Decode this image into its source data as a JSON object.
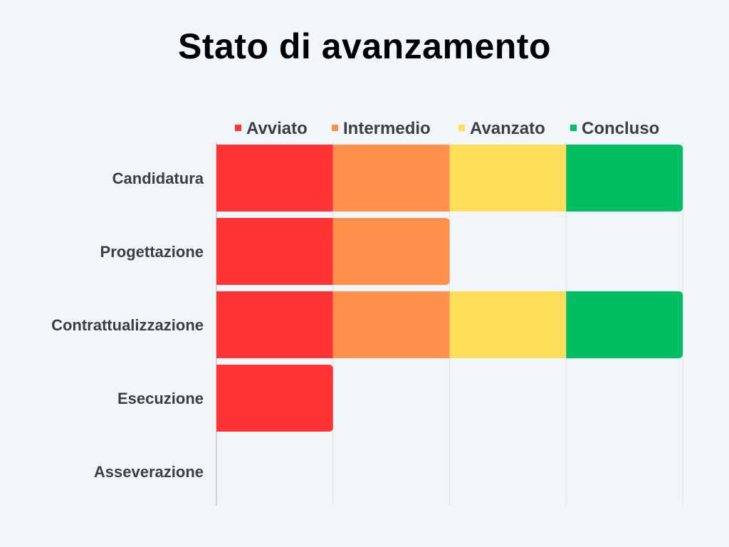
{
  "chart_data": {
    "type": "bar",
    "orientation": "horizontal",
    "stacked": true,
    "title": "Stato di avanzamento",
    "categories": [
      "Candidatura",
      "Progettazione",
      "Contrattualizzazione",
      "Esecuzione",
      "Asseverazione"
    ],
    "series": [
      {
        "name": "Avviato",
        "color": "#ff3333",
        "values": [
          1,
          1,
          1,
          1,
          0
        ]
      },
      {
        "name": "Intermedio",
        "color": "#ff914d",
        "values": [
          1,
          1,
          1,
          0,
          0
        ]
      },
      {
        "name": "Avanzato",
        "color": "#ffde59",
        "values": [
          1,
          0,
          1,
          0,
          0
        ]
      },
      {
        "name": "Concluso",
        "color": "#00bf63",
        "values": [
          1,
          0,
          1,
          0,
          0
        ]
      }
    ],
    "xlim": [
      0,
      4
    ],
    "grid": true,
    "legend": "top"
  }
}
